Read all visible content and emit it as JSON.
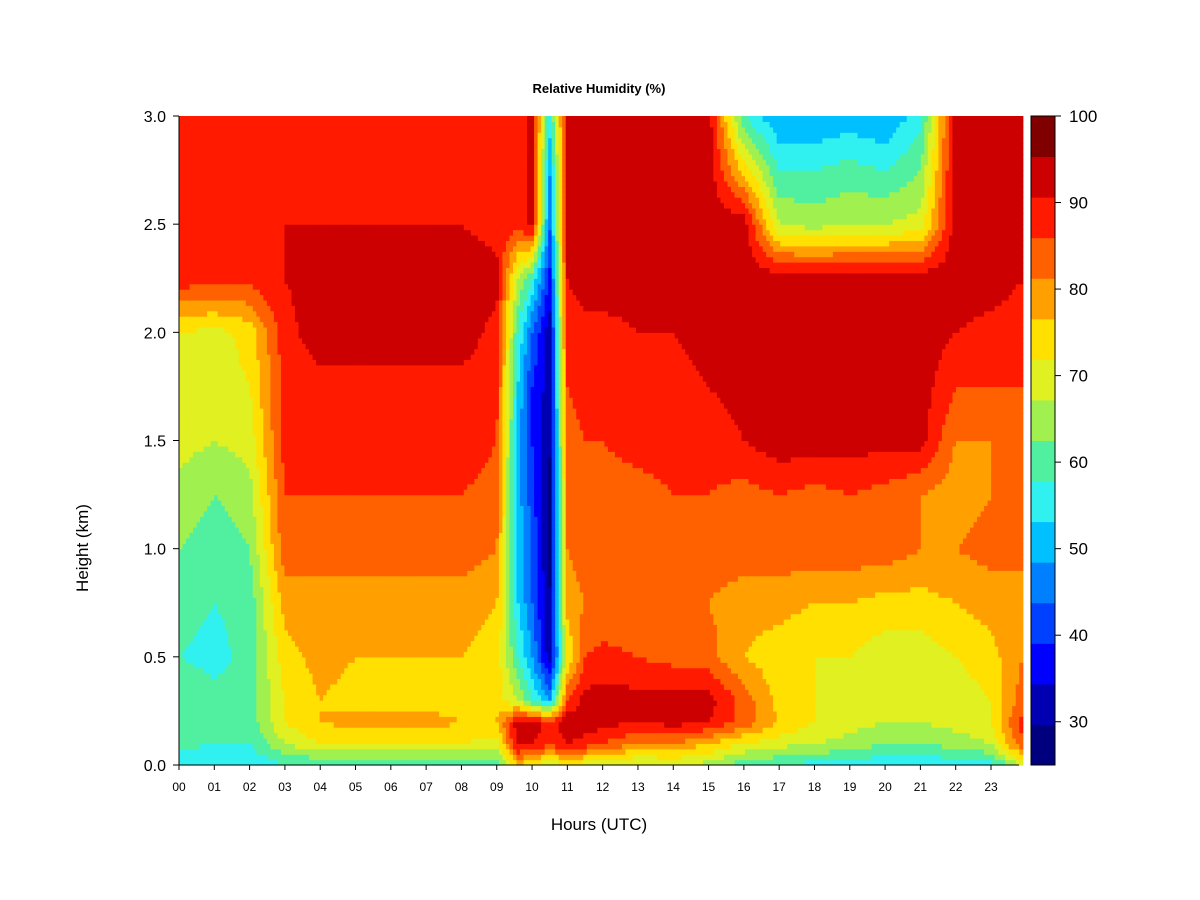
{
  "chart_data": {
    "type": "heatmap",
    "title": "Relative Humidity (%)",
    "xlabel": "Hours (UTC)",
    "ylabel": "Height (km)",
    "x_ticks": [
      "00",
      "01",
      "02",
      "03",
      "04",
      "05",
      "06",
      "07",
      "08",
      "09",
      "10",
      "11",
      "12",
      "13",
      "14",
      "15",
      "16",
      "17",
      "18",
      "19",
      "20",
      "21",
      "22",
      "23"
    ],
    "y_ticks": [
      "0.0",
      "0.5",
      "1.0",
      "1.5",
      "2.0",
      "2.5",
      "3.0"
    ],
    "xlim": [
      0,
      23.9
    ],
    "ylim": [
      0.0,
      3.0
    ],
    "colorbar": {
      "levels": [
        25,
        30,
        35,
        40,
        45,
        50,
        55,
        60,
        65,
        70,
        75,
        80,
        85,
        90,
        95,
        100
      ],
      "tick_labels": [
        "30",
        "40",
        "50",
        "60",
        "70",
        "80",
        "90",
        "100"
      ],
      "colors": [
        "#00007f",
        "#0000b2",
        "#0000ff",
        "#0040ff",
        "#0080ff",
        "#00c0ff",
        "#30f0f0",
        "#50f0a0",
        "#a0f050",
        "#e0f020",
        "#ffe000",
        "#ffa000",
        "#ff6000",
        "#ff1a00",
        "#cc0000",
        "#800000"
      ]
    },
    "grid": false,
    "description_values": {
      "height_km": [
        0.0,
        0.1,
        0.2,
        0.3,
        0.5,
        0.75,
        1.0,
        1.25,
        1.5,
        1.75,
        2.0,
        2.25,
        2.5,
        2.75,
        3.0
      ],
      "hours": [
        0,
        1,
        2,
        3,
        4,
        5,
        6,
        7,
        8,
        9,
        9.6,
        10,
        10.5,
        11,
        11.5,
        12,
        13,
        14,
        15,
        16,
        17,
        18,
        19,
        20,
        21,
        22,
        23,
        23.9
      ],
      "rh": [
        [
          55,
          55,
          55,
          60,
          60,
          60,
          60,
          60,
          60,
          62,
          80,
          75,
          70,
          75,
          72,
          70,
          68,
          70,
          68,
          62,
          60,
          58,
          58,
          55,
          55,
          57,
          58,
          70
        ],
        [
          62,
          60,
          60,
          70,
          75,
          75,
          75,
          75,
          75,
          72,
          97,
          95,
          92,
          95,
          93,
          90,
          85,
          85,
          80,
          75,
          72,
          70,
          68,
          65,
          65,
          67,
          70,
          90
        ],
        [
          65,
          62,
          62,
          75,
          80,
          82,
          82,
          82,
          80,
          80,
          98,
          98,
          93,
          98,
          98,
          97,
          95,
          97,
          95,
          88,
          80,
          75,
          72,
          70,
          70,
          72,
          75,
          92
        ],
        [
          65,
          62,
          63,
          75,
          80,
          78,
          78,
          78,
          78,
          78,
          70,
          60,
          50,
          90,
          97,
          97,
          97,
          98,
          97,
          88,
          78,
          75,
          72,
          72,
          72,
          72,
          75,
          88
        ],
        [
          60,
          58,
          62,
          78,
          82,
          80,
          80,
          80,
          80,
          78,
          60,
          50,
          32,
          75,
          90,
          92,
          90,
          88,
          87,
          80,
          77,
          75,
          75,
          72,
          72,
          75,
          78,
          85
        ],
        [
          62,
          60,
          62,
          82,
          82,
          82,
          82,
          82,
          82,
          80,
          55,
          45,
          30,
          82,
          85,
          85,
          85,
          85,
          85,
          82,
          82,
          80,
          80,
          78,
          78,
          80,
          82,
          85
        ],
        [
          65,
          62,
          65,
          88,
          88,
          88,
          88,
          88,
          88,
          85,
          55,
          45,
          28,
          85,
          88,
          88,
          88,
          88,
          88,
          88,
          88,
          88,
          88,
          88,
          85,
          85,
          87,
          85
        ],
        [
          68,
          65,
          68,
          90,
          90,
          90,
          90,
          90,
          90,
          88,
          52,
          42,
          28,
          85,
          88,
          88,
          88,
          90,
          90,
          88,
          90,
          88,
          90,
          88,
          85,
          82,
          85,
          85
        ],
        [
          72,
          70,
          72,
          92,
          93,
          93,
          93,
          93,
          93,
          90,
          52,
          40,
          30,
          88,
          90,
          90,
          92,
          92,
          92,
          95,
          98,
          98,
          97,
          97,
          97,
          85,
          85,
          88
        ],
        [
          75,
          72,
          75,
          92,
          93,
          93,
          93,
          93,
          93,
          92,
          55,
          40,
          32,
          90,
          92,
          92,
          93,
          93,
          95,
          97,
          98,
          98,
          98,
          98,
          98,
          90,
          90,
          90
        ],
        [
          75,
          73,
          77,
          93,
          98,
          98,
          98,
          98,
          98,
          93,
          60,
          45,
          32,
          92,
          93,
          93,
          95,
          95,
          97,
          98,
          98,
          98,
          98,
          98,
          98,
          95,
          93,
          92
        ],
        [
          93,
          92,
          92,
          95,
          98,
          98,
          98,
          98,
          98,
          97,
          70,
          60,
          38,
          95,
          98,
          98,
          98,
          98,
          98,
          98,
          98,
          98,
          98,
          98,
          98,
          98,
          98,
          95
        ],
        [
          95,
          95,
          95,
          95,
          95,
          95,
          95,
          95,
          95,
          93,
          92,
          97,
          45,
          97,
          98,
          98,
          98,
          98,
          98,
          98,
          70,
          68,
          70,
          70,
          72,
          98,
          98,
          95
        ],
        [
          93,
          93,
          93,
          93,
          93,
          93,
          93,
          93,
          93,
          92,
          90,
          97,
          50,
          95,
          98,
          98,
          98,
          98,
          98,
          78,
          60,
          60,
          62,
          60,
          65,
          98,
          98,
          95
        ],
        [
          93,
          93,
          93,
          93,
          93,
          93,
          93,
          93,
          93,
          92,
          90,
          97,
          58,
          95,
          98,
          98,
          98,
          98,
          98,
          60,
          50,
          50,
          52,
          50,
          58,
          97,
          98,
          95
        ]
      ]
    }
  }
}
